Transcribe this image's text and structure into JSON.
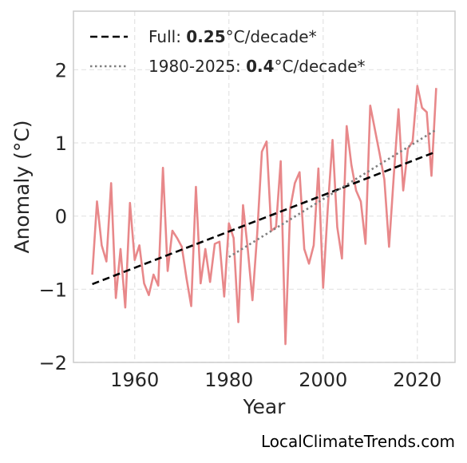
{
  "chart_data": {
    "type": "line",
    "xlabel": "Year",
    "ylabel": "Anomaly (°C)",
    "xlim": [
      1947,
      2028
    ],
    "ylim": [
      -2,
      2.8
    ],
    "xticks": [
      1960,
      1980,
      2000,
      2020
    ],
    "yticks": [
      -2,
      -1,
      0,
      1,
      2
    ],
    "ytick_labels": [
      "−2",
      "−1",
      "0",
      "1",
      "2"
    ],
    "grid": true,
    "legend_position": "top-left",
    "series": [
      {
        "kind": "anomaly",
        "color": "#e8888a",
        "x": [
          1951,
          1952,
          1953,
          1954,
          1955,
          1956,
          1957,
          1958,
          1959,
          1960,
          1961,
          1962,
          1963,
          1964,
          1965,
          1966,
          1967,
          1968,
          1969,
          1970,
          1971,
          1972,
          1973,
          1974,
          1975,
          1976,
          1977,
          1978,
          1979,
          1980,
          1981,
          1982,
          1983,
          1984,
          1985,
          1986,
          1987,
          1988,
          1989,
          1990,
          1991,
          1992,
          1993,
          1994,
          1995,
          1996,
          1997,
          1998,
          1999,
          2000,
          2001,
          2002,
          2003,
          2004,
          2005,
          2006,
          2007,
          2008,
          2009,
          2010,
          2011,
          2012,
          2013,
          2014,
          2015,
          2016,
          2017,
          2018,
          2019,
          2020,
          2021,
          2022,
          2023,
          2024
        ],
        "y": [
          -0.8,
          0.2,
          -0.4,
          -0.62,
          0.45,
          -1.12,
          -0.45,
          -1.25,
          0.18,
          -0.6,
          -0.4,
          -0.92,
          -1.08,
          -0.8,
          -0.95,
          0.66,
          -0.75,
          -0.2,
          -0.3,
          -0.42,
          -0.85,
          -1.23,
          0.4,
          -0.92,
          -0.45,
          -0.9,
          -0.38,
          -0.35,
          -1.1,
          -0.1,
          -0.3,
          -1.45,
          0.15,
          -0.45,
          -1.15,
          -0.25,
          0.88,
          1.02,
          -0.2,
          -0.15,
          0.75,
          -1.75,
          0.1,
          0.45,
          0.6,
          -0.45,
          -0.65,
          -0.4,
          0.65,
          -0.98,
          0.12,
          1.04,
          -0.15,
          -0.58,
          1.23,
          0.7,
          0.35,
          0.2,
          -0.38,
          1.51,
          1.18,
          0.85,
          0.5,
          -0.42,
          0.55,
          1.46,
          0.35,
          0.92,
          1.02,
          1.78,
          1.48,
          1.42,
          0.55,
          1.75
        ]
      },
      {
        "kind": "trend-full",
        "color": "#000000",
        "x": [
          1951,
          2024
        ],
        "y": [
          -0.93,
          0.88
        ]
      },
      {
        "kind": "trend-recent",
        "color": "#808080",
        "x": [
          1980,
          2024
        ],
        "y": [
          -0.56,
          1.18
        ]
      }
    ],
    "legend": [
      {
        "prefix": "Full: ",
        "value": "0.25",
        "suffix": "°C/decade*"
      },
      {
        "prefix": "1980-2025: ",
        "value": "0.4",
        "suffix": "°C/decade*"
      }
    ]
  },
  "source": "LocalClimateTrends.com"
}
